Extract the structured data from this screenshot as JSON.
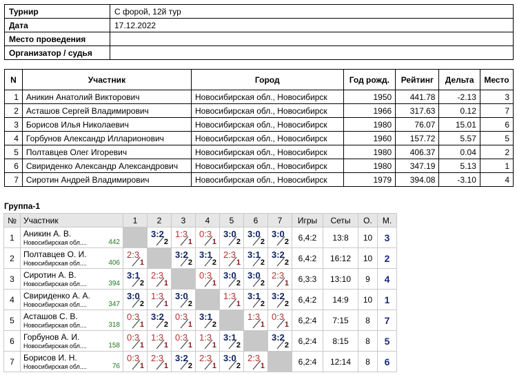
{
  "info": [
    {
      "key": "Турнир",
      "value": "С форой, 12й тур"
    },
    {
      "key": "Дата",
      "value": "17.12.2022"
    },
    {
      "key": "Место проведения",
      "value": ""
    },
    {
      "key": "Организатор / судья",
      "value": ""
    }
  ],
  "participants": {
    "headers": [
      "N",
      "Участник",
      "Город",
      "Год рожд.",
      "Рейтинг",
      "Дельта",
      "Место"
    ],
    "rows": [
      [
        "1",
        "Аникин Анатолий Викторович",
        "Новосибирская обл., Новосибирск",
        "1950",
        "441.78",
        "-2.13",
        "3"
      ],
      [
        "2",
        "Асташов Сергей Владимирович",
        "Новосибирская обл., Новосибирск",
        "1966",
        "317.63",
        "0.12",
        "7"
      ],
      [
        "3",
        "Борисов Илья Николаевич",
        "Новосибирская обл., Новосибирск",
        "1980",
        "76.07",
        "15.01",
        "6"
      ],
      [
        "4",
        "Горбунов Александр Илларионович",
        "Новосибирская обл., Новосибирск",
        "1960",
        "157.72",
        "5.57",
        "5"
      ],
      [
        "5",
        "Полтавцев Олег Игоревич",
        "Новосибирская обл., Новосибирск",
        "1980",
        "406.37",
        "0.04",
        "2"
      ],
      [
        "6",
        "Свириденко Александр Александрович",
        "Новосибирская обл., Новосибирск",
        "1980",
        "347.19",
        "5.13",
        "1"
      ],
      [
        "7",
        "Сиротин Андрей Владимирович",
        "Новосибирская обл., Новосибирск",
        "1979",
        "394.08",
        "-3.10",
        "4"
      ]
    ]
  },
  "group": {
    "title": "Группа-1",
    "headers": [
      "№",
      "Участник",
      "1",
      "2",
      "3",
      "4",
      "5",
      "6",
      "7",
      "Игры",
      "Сеты",
      "О.",
      "М."
    ],
    "rows": [
      {
        "n": "1",
        "name": "Аникин А. В.",
        "city": "Новосибирская обл....",
        "rating": "442",
        "cells": [
          null,
          [
            "3:2",
            "2",
            "w"
          ],
          [
            "1:3",
            "1",
            "l"
          ],
          [
            "0:3",
            "1",
            "l"
          ],
          [
            "3:0",
            "2",
            "w"
          ],
          [
            "3:0",
            "2",
            "w"
          ],
          [
            "3:0",
            "2",
            "w"
          ]
        ],
        "games": "6,4:2",
        "sets": "13:8",
        "points": "10",
        "place": "3"
      },
      {
        "n": "2",
        "name": "Полтавцев О. И.",
        "city": "Новосибирская обл....",
        "rating": "406",
        "cells": [
          [
            "2:3",
            "1",
            "l"
          ],
          null,
          [
            "3:2",
            "2",
            "w"
          ],
          [
            "3:1",
            "2",
            "w"
          ],
          [
            "2:3",
            "1",
            "l"
          ],
          [
            "3:1",
            "2",
            "w"
          ],
          [
            "3:2",
            "2",
            "w"
          ]
        ],
        "games": "6,4:2",
        "sets": "16:12",
        "points": "10",
        "place": "2"
      },
      {
        "n": "3",
        "name": "Сиротин А. В.",
        "city": "Новосибирская обл....",
        "rating": "394",
        "cells": [
          [
            "3:1",
            "2",
            "w"
          ],
          [
            "2:3",
            "1",
            "l"
          ],
          null,
          [
            "0:3",
            "1",
            "l"
          ],
          [
            "3:0",
            "2",
            "w"
          ],
          [
            "3:0",
            "2",
            "w"
          ],
          [
            "2:3",
            "1",
            "l"
          ]
        ],
        "games": "6,3:3",
        "sets": "13:10",
        "points": "9",
        "place": "4"
      },
      {
        "n": "4",
        "name": "Свириденко А. А.",
        "city": "Новосибирская обл....",
        "rating": "347",
        "cells": [
          [
            "3:0",
            "2",
            "w"
          ],
          [
            "1:3",
            "1",
            "l"
          ],
          [
            "3:0",
            "2",
            "w"
          ],
          null,
          [
            "1:3",
            "1",
            "l"
          ],
          [
            "3:1",
            "2",
            "w"
          ],
          [
            "3:2",
            "2",
            "w"
          ]
        ],
        "games": "6,4:2",
        "sets": "14:9",
        "points": "10",
        "place": "1"
      },
      {
        "n": "5",
        "name": "Асташов С. В.",
        "city": "Новосибирская обл....",
        "rating": "318",
        "cells": [
          [
            "0:3",
            "1",
            "l"
          ],
          [
            "3:2",
            "2",
            "w"
          ],
          [
            "0:3",
            "1",
            "l"
          ],
          [
            "3:1",
            "2",
            "w"
          ],
          null,
          [
            "1:3",
            "1",
            "l"
          ],
          [
            "0:3",
            "1",
            "l"
          ]
        ],
        "games": "6,2:4",
        "sets": "7:15",
        "points": "8",
        "place": "7"
      },
      {
        "n": "6",
        "name": "Горбунов А. И.",
        "city": "Новосибирская обл....",
        "rating": "158",
        "cells": [
          [
            "0:3",
            "1",
            "l"
          ],
          [
            "1:3",
            "1",
            "l"
          ],
          [
            "0:3",
            "1",
            "l"
          ],
          [
            "1:3",
            "1",
            "l"
          ],
          [
            "3:1",
            "2",
            "w"
          ],
          null,
          [
            "3:2",
            "2",
            "w"
          ]
        ],
        "games": "6,2:4",
        "sets": "8:15",
        "points": "8",
        "place": "5"
      },
      {
        "n": "7",
        "name": "Борисов И. Н.",
        "city": "Новосибирская обл....",
        "rating": "76",
        "cells": [
          [
            "0:3",
            "1",
            "l"
          ],
          [
            "2:3",
            "1",
            "l"
          ],
          [
            "3:2",
            "2",
            "w"
          ],
          [
            "2:3",
            "1",
            "l"
          ],
          [
            "3:0",
            "2",
            "w"
          ],
          [
            "2:3",
            "1",
            "l"
          ],
          null
        ],
        "games": "6,2:4",
        "sets": "12:14",
        "points": "8",
        "place": "6"
      }
    ]
  }
}
